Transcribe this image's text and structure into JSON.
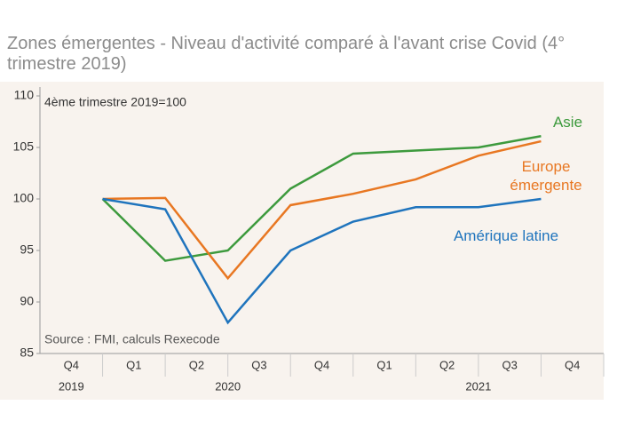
{
  "chart_data": {
    "type": "line",
    "title": "Zones émergentes - Niveau d'activité comparé à l'avant crise Covid (4° trimestre 2019)",
    "annotations": [
      "4ème trimestre 2019=100",
      "Source : FMI, calculs Rexecode"
    ],
    "categories": [
      "Q4",
      "Q1",
      "Q2",
      "Q3",
      "Q4",
      "Q1",
      "Q2",
      "Q3",
      "Q4"
    ],
    "year_labels": [
      "2019",
      "2020",
      "2021"
    ],
    "series": [
      {
        "name": "Asie",
        "color": "#3d9a3d",
        "values": [
          100,
          94,
          95,
          101,
          104.4,
          104.7,
          105,
          106.1,
          null
        ]
      },
      {
        "name": "Europe émergente",
        "color": "#e87722",
        "values": [
          100,
          100.1,
          92.3,
          99.4,
          100.5,
          101.9,
          104.2,
          105.6,
          null
        ]
      },
      {
        "name": "Amérique latine",
        "color": "#1f74bd",
        "values": [
          100,
          99,
          88,
          95,
          97.8,
          99.2,
          99.2,
          100,
          null
        ]
      }
    ],
    "ylim": [
      85,
      110
    ],
    "yticks": [
      85,
      90,
      95,
      100,
      105,
      110
    ]
  }
}
